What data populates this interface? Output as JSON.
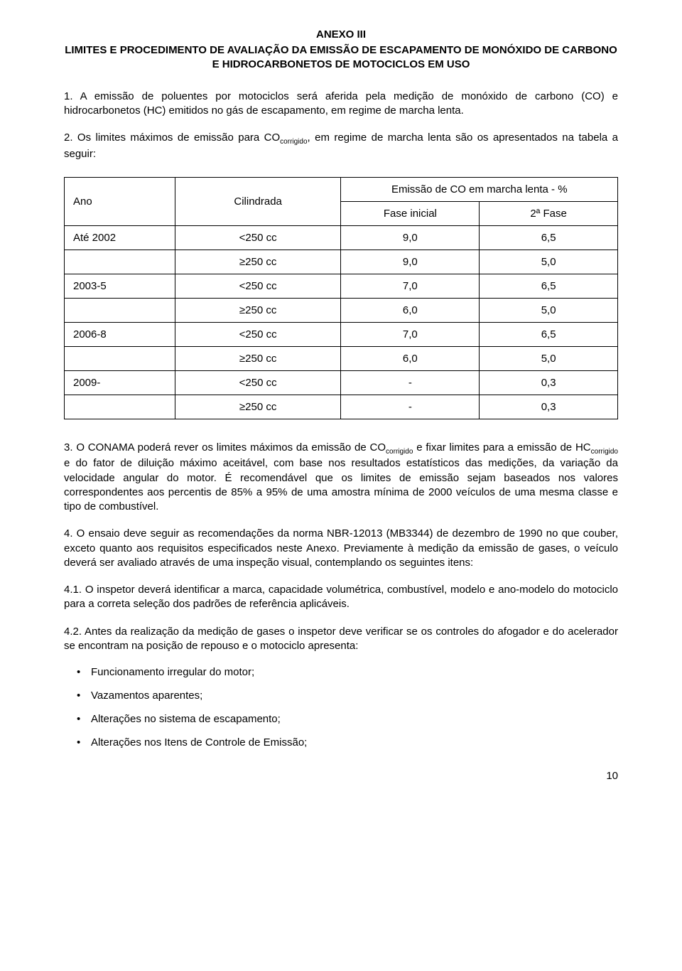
{
  "header": {
    "title": "ANEXO III",
    "subtitle": "LIMITES E PROCEDIMENTO DE AVALIAÇÃO DA EMISSÃO DE ESCAPAMENTO DE MONÓXIDO DE CARBONO E HIDROCARBONETOS DE MOTOCICLOS EM USO"
  },
  "para1": "1. A emissão de poluentes por motociclos será aferida pela medição de monóxido de carbono (CO) e hidrocarbonetos (HC) emitidos no gás de escapamento, em regime de marcha lenta.",
  "para2_pre": "2. Os limites máximos de emissão para CO",
  "para2_sub": "corrigido",
  "para2_post": ", em regime de marcha lenta são os apresentados na tabela a seguir:",
  "table": {
    "headers": {
      "ano": "Ano",
      "cilindrada": "Cilindrada",
      "emissao": "Emissão de CO  em marcha lenta - %",
      "fase_inicial": "Fase inicial",
      "fase2": "2ª Fase"
    },
    "rows": [
      {
        "ano": "Até 2002",
        "cil": "<250 cc",
        "v1": "9,0",
        "v2": "6,5"
      },
      {
        "ano": "",
        "cil": "≥250 cc",
        "v1": "9,0",
        "v2": "5,0"
      },
      {
        "ano": "2003-5",
        "cil": "<250 cc",
        "v1": "7,0",
        "v2": "6,5"
      },
      {
        "ano": "",
        "cil": "≥250 cc",
        "v1": "6,0",
        "v2": "5,0"
      },
      {
        "ano": "2006-8",
        "cil": "<250 cc",
        "v1": "7,0",
        "v2": "6,5"
      },
      {
        "ano": "",
        "cil": "≥250 cc",
        "v1": "6,0",
        "v2": "5,0"
      },
      {
        "ano": "2009-",
        "cil": "<250 cc",
        "v1": "-",
        "v2": "0,3"
      },
      {
        "ano": "",
        "cil": "≥250 cc",
        "v1": "-",
        "v2": "0,3"
      }
    ]
  },
  "para3_pre": "3. O CONAMA poderá rever os limites máximos da emissão de CO",
  "para3_sub1": "corrigido",
  "para3_mid": " e fixar limites para a emissão de HC",
  "para3_sub2": "corrigido",
  "para3_post": " e do fator de diluição máximo aceitável, com base nos resultados estatísticos das medições, da variação da velocidade angular do motor. É recomendável que os limites de emissão sejam baseados nos valores correspondentes aos percentis de 85% a 95% de uma amostra mínima de 2000 veículos de uma mesma classe e tipo de combustível.",
  "para4": "4. O ensaio deve seguir as recomendações da norma NBR-12013 (MB3344) de dezembro de 1990 no que couber, exceto quanto aos requisitos especificados neste Anexo. Previamente à medição da emissão de gases, o veículo deverá ser avaliado através de uma inspeção visual, contemplando os seguintes itens:",
  "para41": "4.1. O inspetor deverá identificar a marca, capacidade volumétrica, combustível, modelo e ano-modelo do motociclo para a correta seleção dos padrões de referência aplicáveis.",
  "para42": "4.2. Antes da realização da medição de gases o inspetor deve verificar se os controles do afogador e do acelerador se encontram na posição de repouso e o motociclo apresenta:",
  "bullets": [
    "Funcionamento irregular do motor;",
    "Vazamentos aparentes;",
    "Alterações no sistema de escapamento;",
    "Alterações nos Itens de Controle de Emissão;"
  ],
  "page_number": "10"
}
